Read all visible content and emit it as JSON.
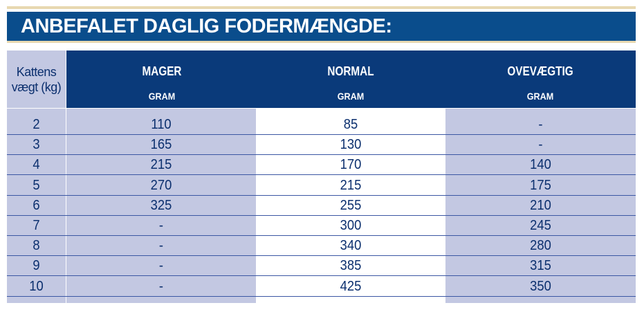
{
  "title": "ANBEFALET DAGLIG FODERMÆNGDE:",
  "weight_header": [
    "Kattens",
    "vægt (kg)"
  ],
  "columns": [
    {
      "name": "MAGER",
      "unit": "GRAM"
    },
    {
      "name": "NORMAL",
      "unit": "GRAM"
    },
    {
      "name": "OVEVÆGTIG",
      "unit": "GRAM"
    }
  ],
  "rows": [
    {
      "weight": "2",
      "values": [
        "110",
        "85",
        "-"
      ]
    },
    {
      "weight": "3",
      "values": [
        "165",
        "130",
        "-"
      ]
    },
    {
      "weight": "4",
      "values": [
        "215",
        "170",
        "140"
      ]
    },
    {
      "weight": "5",
      "values": [
        "270",
        "215",
        "175"
      ]
    },
    {
      "weight": "6",
      "values": [
        "325",
        "255",
        "210"
      ]
    },
    {
      "weight": "7",
      "values": [
        "-",
        "300",
        "245"
      ]
    },
    {
      "weight": "8",
      "values": [
        "-",
        "340",
        "280"
      ]
    },
    {
      "weight": "9",
      "values": [
        "-",
        "385",
        "315"
      ]
    },
    {
      "weight": "10",
      "values": [
        "-",
        "425",
        "350"
      ]
    }
  ],
  "colors": {
    "title_bar": "#0a4d8c",
    "header_band": "#0a3a7a",
    "shaded_column": "#c3c8e2",
    "text": "#0b2f6e",
    "rule": "#3b57a3"
  }
}
